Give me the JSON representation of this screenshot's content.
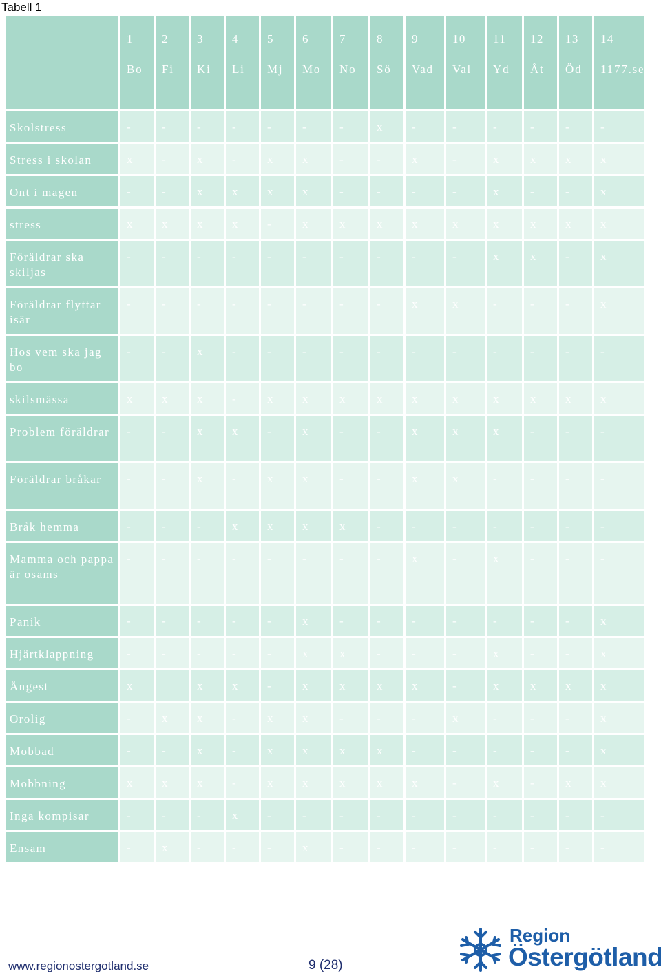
{
  "caption": "Tabell 1",
  "columns": [
    {
      "num": "1",
      "abbr": "Bo"
    },
    {
      "num": "2",
      "abbr": "Fi"
    },
    {
      "num": "3",
      "abbr": "Ki"
    },
    {
      "num": "4",
      "abbr": "Li"
    },
    {
      "num": "5",
      "abbr": "Mj"
    },
    {
      "num": "6",
      "abbr": "Mo"
    },
    {
      "num": "7",
      "abbr": "No"
    },
    {
      "num": "8",
      "abbr": "Sö"
    },
    {
      "num": "9",
      "abbr": "Vad"
    },
    {
      "num": "10",
      "abbr": "Val"
    },
    {
      "num": "11",
      "abbr": "Yd"
    },
    {
      "num": "12",
      "abbr": "Åt"
    },
    {
      "num": "13",
      "abbr": "Öd"
    },
    {
      "num": "14",
      "abbr": "1177.se"
    }
  ],
  "rows": [
    {
      "label": "Skolstress",
      "values": [
        "-",
        "-",
        "-",
        "-",
        "-",
        "-",
        "-",
        "x",
        "-",
        "-",
        "-",
        "-",
        "-",
        "-"
      ]
    },
    {
      "label": "Stress i skolan",
      "values": [
        "x",
        "-",
        "x",
        "-",
        "x",
        "x",
        "-",
        "-",
        "x",
        "-",
        "x",
        "x",
        "x",
        "x"
      ]
    },
    {
      "label": "Ont i magen",
      "values": [
        "-",
        "-",
        "x",
        "x",
        "x",
        "x",
        "-",
        "-",
        "-",
        "-",
        "x",
        "-",
        "-",
        "x"
      ]
    },
    {
      "label": "stress",
      "values": [
        "x",
        "x",
        "x",
        "x",
        "-",
        "x",
        "x",
        "x",
        "x",
        "x",
        "x",
        "x",
        "x",
        "x"
      ]
    },
    {
      "label": "Föräldrar ska skiljas",
      "values": [
        "-",
        "-",
        "-",
        "-",
        "-",
        "-",
        "-",
        "-",
        "-",
        "-",
        "x",
        "x",
        "-",
        "x"
      ]
    },
    {
      "label": "Föräldrar flyttar isär",
      "values": [
        "-",
        "-",
        "-",
        "-",
        "-",
        "-",
        "-",
        "-",
        "x",
        "x",
        "-",
        "-",
        "-",
        "x"
      ]
    },
    {
      "label": "Hos vem ska jag bo",
      "values": [
        "-",
        "-",
        "x",
        "-",
        "-",
        "-",
        "-",
        "-",
        "-",
        "-",
        "-",
        "-",
        "-",
        "-"
      ]
    },
    {
      "label": "skilsmässa",
      "values": [
        "x",
        "x",
        "x",
        "-",
        "x",
        "x",
        "x",
        "x",
        "x",
        "x",
        "x",
        "x",
        "x",
        "x"
      ]
    },
    {
      "label": "Problem föräldrar",
      "values": [
        "-",
        "-",
        "x",
        "x",
        "-",
        "x",
        "-",
        "-",
        "x",
        "x",
        "x",
        "-",
        "-",
        "-"
      ]
    },
    {
      "label": "Föräldrar bråkar",
      "values": [
        "-",
        "-",
        "x",
        "-",
        "x",
        "x",
        "-",
        "-",
        "x",
        "x",
        "-",
        "-",
        "-",
        "-"
      ]
    },
    {
      "label": "Bråk hemma",
      "values": [
        "-",
        "-",
        "-",
        "x",
        "x",
        "x",
        "x",
        "-",
        "-",
        "-",
        "-",
        "-",
        "-",
        "-"
      ]
    },
    {
      "label": "Mamma och pappa är osams",
      "values": [
        "-",
        "-",
        "-",
        "-",
        "-",
        "-",
        "-",
        "-",
        "x",
        "-",
        "x",
        "-",
        "-",
        "-"
      ]
    },
    {
      "label": "Panik",
      "values": [
        "-",
        "-",
        "-",
        "-",
        "-",
        "x",
        "-",
        "-",
        "-",
        "-",
        "-",
        "-",
        "-",
        "x"
      ]
    },
    {
      "label": "Hjärtklappning",
      "values": [
        "-",
        "-",
        "-",
        "-",
        "-",
        "x",
        "x",
        "-",
        "-",
        "-",
        "x",
        "-",
        "-",
        "x"
      ]
    },
    {
      "label": "Ångest",
      "values": [
        "x",
        "",
        "x",
        "x",
        "-",
        "x",
        "x",
        "x",
        "x",
        "-",
        "x",
        "x",
        "x",
        "x"
      ]
    },
    {
      "label": "Orolig",
      "values": [
        "-",
        "x",
        "x",
        "-",
        "x",
        "x",
        "-",
        "-",
        "-",
        "x",
        "-",
        "-",
        "-",
        "x"
      ]
    },
    {
      "label": "Mobbad",
      "values": [
        "-",
        "-",
        "x",
        "-",
        "x",
        "x",
        "x",
        "x",
        "-",
        "-",
        "-",
        "-",
        "-",
        "x"
      ]
    },
    {
      "label": "Mobbning",
      "values": [
        "x",
        "x",
        "x",
        "-",
        "x",
        "x",
        "x",
        "x",
        "x",
        "-",
        "x",
        "-",
        "x",
        "x"
      ]
    },
    {
      "label": "Inga kompisar",
      "values": [
        "-",
        "-",
        "-",
        "x",
        "-",
        "-",
        "-",
        "-",
        "-",
        "-",
        "-",
        "-",
        "-",
        "-"
      ]
    },
    {
      "label": "Ensam",
      "values": [
        "-",
        "x",
        "-",
        "-",
        "-",
        "x",
        "-",
        "-",
        "-",
        "-",
        "-",
        "-",
        "-",
        "-"
      ]
    }
  ],
  "footer": {
    "url": "www.regionostergotland.se",
    "page": "9 (28)",
    "logo_line1": "Region",
    "logo_line2": "Östergötland"
  },
  "colors": {
    "header_cell": "#a9d9ca",
    "row_odd": "#d6efe6",
    "row_even": "#e6f5ef",
    "brand_blue": "#1e5ea8"
  }
}
